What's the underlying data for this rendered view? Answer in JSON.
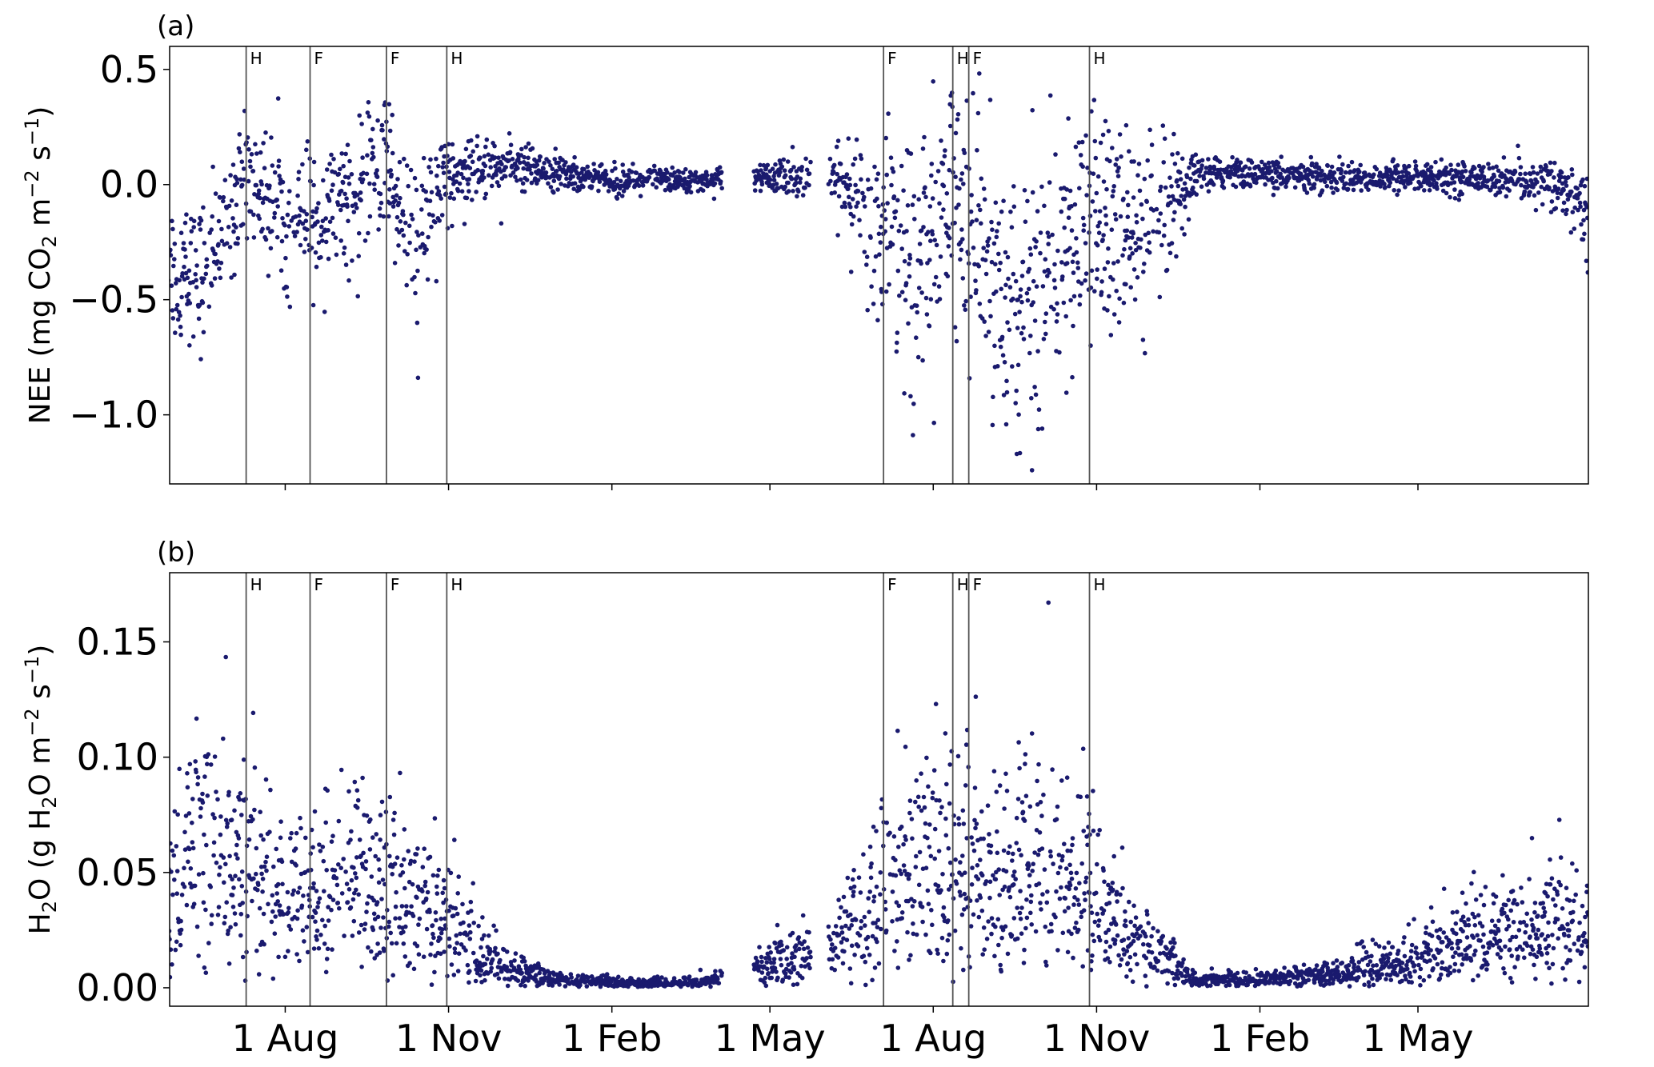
{
  "chart_data": [
    {
      "type": "scatter",
      "panel_label": "(a)",
      "ylabel_parts": [
        "NEE (mg CO",
        "2",
        " m",
        "−2",
        " s",
        "−1",
        ")"
      ],
      "ylim": [
        -1.3,
        0.6
      ],
      "yticks": [
        0.5,
        0.0,
        -0.5,
        -1.0
      ],
      "ytick_labels": [
        "0.5",
        "0.0",
        "−0.5",
        "−1.0"
      ],
      "xtick_labels": [],
      "marker_color": "#1a1a6e",
      "event_lines": [
        {
          "label": "H",
          "day": 44
        },
        {
          "label": "F",
          "day": 80
        },
        {
          "label": "F",
          "day": 123
        },
        {
          "label": "H",
          "day": 157
        },
        {
          "label": "F",
          "day": 403
        },
        {
          "label": "H",
          "day": 442
        },
        {
          "label": "F",
          "day": 451
        },
        {
          "label": "H",
          "day": 519
        }
      ],
      "series_profile": {
        "days": [
          0,
          20,
          44,
          60,
          80,
          100,
          123,
          140,
          157,
          180,
          210,
          240,
          280,
          300,
          330,
          360,
          380,
          395,
          403,
          420,
          442,
          451,
          470,
          490,
          519,
          540,
          560,
          580,
          600,
          620,
          640,
          660,
          700,
          740,
          780,
          800
        ],
        "center": [
          -0.35,
          -0.4,
          0.05,
          -0.1,
          -0.15,
          -0.05,
          0.1,
          -0.3,
          0.05,
          0.08,
          0.05,
          0.03,
          0.02,
          0.02,
          0.03,
          0.03,
          0.0,
          -0.15,
          -0.2,
          -0.4,
          -0.05,
          -0.2,
          -0.45,
          -0.5,
          -0.15,
          -0.25,
          -0.2,
          0.05,
          0.05,
          0.04,
          0.04,
          0.03,
          0.03,
          0.03,
          0.0,
          -0.1
        ],
        "spread": [
          0.2,
          0.2,
          0.15,
          0.2,
          0.2,
          0.18,
          0.18,
          0.25,
          0.12,
          0.08,
          0.06,
          0.04,
          0.03,
          0.03,
          0.04,
          0.05,
          0.1,
          0.2,
          0.25,
          0.4,
          0.3,
          0.35,
          0.35,
          0.35,
          0.3,
          0.3,
          0.2,
          0.05,
          0.04,
          0.04,
          0.04,
          0.04,
          0.04,
          0.04,
          0.06,
          0.12
        ],
        "gaps": [
          [
            312,
            330
          ],
          [
            362,
            372
          ]
        ]
      }
    },
    {
      "type": "scatter",
      "panel_label": "(b)",
      "ylabel_parts": [
        "H",
        "2",
        "O (g H",
        "2",
        "O m",
        "−2",
        " s",
        "−1",
        ")"
      ],
      "ylim": [
        -0.008,
        0.18
      ],
      "yticks": [
        0.15,
        0.1,
        0.05,
        0.0
      ],
      "ytick_labels": [
        "0.15",
        "0.10",
        "0.05",
        "0.00"
      ],
      "xtick_labels": [
        "1 Aug",
        "1 Nov",
        "1 Feb",
        "1 May",
        "1 Aug",
        "1 Nov",
        "1 Feb",
        "1 May"
      ],
      "xtick_days": [
        66,
        158,
        250,
        339,
        431,
        523,
        615,
        704
      ],
      "marker_color": "#1a1a6e",
      "event_lines": [
        {
          "label": "H",
          "day": 44
        },
        {
          "label": "F",
          "day": 80
        },
        {
          "label": "F",
          "day": 123
        },
        {
          "label": "H",
          "day": 157
        },
        {
          "label": "F",
          "day": 403
        },
        {
          "label": "H",
          "day": 442
        },
        {
          "label": "F",
          "day": 451
        },
        {
          "label": "H",
          "day": 519
        }
      ],
      "series_profile": {
        "days": [
          0,
          15,
          30,
          44,
          80,
          123,
          157,
          190,
          220,
          260,
          300,
          330,
          360,
          380,
          403,
          430,
          451,
          480,
          519,
          545,
          580,
          620,
          660,
          700,
          740,
          800
        ],
        "center": [
          0.03,
          0.05,
          0.05,
          0.03,
          0.03,
          0.03,
          0.02,
          0.005,
          0.002,
          0.001,
          0.001,
          0.005,
          0.01,
          0.015,
          0.025,
          0.04,
          0.03,
          0.035,
          0.03,
          0.015,
          0.002,
          0.002,
          0.004,
          0.006,
          0.015,
          0.015
        ],
        "spread": [
          0.035,
          0.04,
          0.035,
          0.03,
          0.03,
          0.03,
          0.02,
          0.006,
          0.003,
          0.002,
          0.002,
          0.006,
          0.01,
          0.015,
          0.03,
          0.04,
          0.04,
          0.04,
          0.03,
          0.015,
          0.003,
          0.003,
          0.006,
          0.01,
          0.02,
          0.02
        ],
        "gaps": [
          [
            312,
            330
          ],
          [
            362,
            372
          ]
        ]
      }
    }
  ]
}
